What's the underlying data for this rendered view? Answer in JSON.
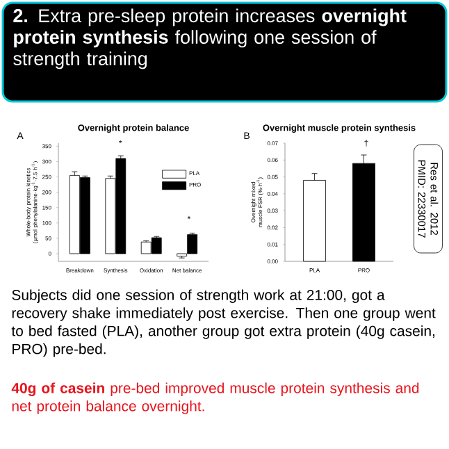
{
  "chart_data": [
    {
      "type": "bar",
      "title": "Overnight protein balance",
      "ylabel": "Whole-body protein kinetics (µmol phenylalanine·kg$^{-1}$·7.5 h$^{-1}$)",
      "categories": [
        "Breakdown",
        "Synthesis",
        "Oxidation",
        "Net balance"
      ],
      "series": [
        {
          "name": "PLA",
          "color": "#ffffff",
          "values": [
            255,
            245,
            38,
            -8
          ],
          "errors": [
            12,
            8,
            4,
            6
          ]
        },
        {
          "name": "PRO",
          "color": "#000000",
          "values": [
            248,
            310,
            52,
            62
          ],
          "errors": [
            5,
            9,
            4,
            5
          ]
        }
      ],
      "ylim": [
        -25,
        360
      ],
      "yticks": [
        0,
        50,
        100,
        150,
        200,
        250,
        300,
        350
      ],
      "legend": "top right",
      "annotations": [
        "**2.** Extra pre-sleep protein increases **overnight protein synthesis** following one session of strength training",
        "A",
        "*",
        "*"
      ]
    },
    {
      "type": "bar",
      "title": "Overnight muscle protein synthesis",
      "ylabel": "Overnight mixed muscle FSR (%·h$^{-1}$)",
      "categories": [
        "PLA",
        "PRO"
      ],
      "values": [
        0.048,
        0.058
      ],
      "colors": [
        "#ffffff",
        "#000000"
      ],
      "errors": [
        0.004,
        0.005
      ],
      "ylim": [
        0,
        0.07
      ],
      "yticks": [
        {
          "value": 0,
          "label": "0.00"
        },
        {
          "value": 0.01,
          "label": "0.01"
        },
        {
          "value": 0.02,
          "label": "0.02"
        },
        {
          "value": 0.03,
          "label": "0.03"
        },
        {
          "value": 0.04,
          "label": "0.04"
        },
        {
          "value": 0.05,
          "label": "0.05"
        },
        {
          "value": 0.06,
          "label": "0.06"
        },
        {
          "value": 0.07,
          "label": "0.07"
        }
      ],
      "annotations": [
        "B",
        "†",
        "Res et al. 2012 PMID: 22330017",
        "Subjects did one session of strength work at 21:00, got a recovery shake immediately post exercise. Then one group went to bed fasted (PLA), another group got extra protein (40g casein, PRO) pre-bed.",
        "**40g of casein** pre-bed improved muscle protein synthesis and net protein balance overnight."
      ]
    }
  ]
}
